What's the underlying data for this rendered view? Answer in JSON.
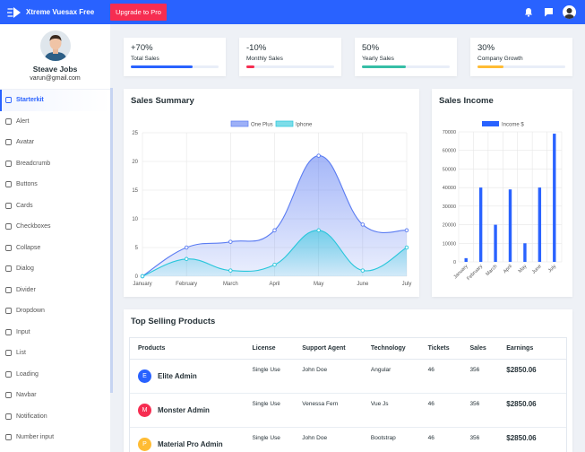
{
  "topbar": {
    "brand": "Xtreme Vuesax Free",
    "upgrade_label": "Upgrade to Pro",
    "bg": "#2962ff",
    "icons": [
      "bell-icon",
      "chat-icon",
      "avatar"
    ]
  },
  "profile": {
    "name": "Steave Jobs",
    "email": "varun@gmail.com"
  },
  "sidebar": {
    "items": [
      {
        "label": "Starterkit",
        "icon": "heart-icon"
      },
      {
        "label": "Alert",
        "icon": "info-icon"
      },
      {
        "label": "Avatar",
        "icon": "home-icon"
      },
      {
        "label": "Breadcrumb",
        "icon": "breadcrumb-icon"
      },
      {
        "label": "Buttons",
        "icon": "grid-icon"
      },
      {
        "label": "Cards",
        "icon": "card-icon"
      },
      {
        "label": "Checkboxes",
        "icon": "checkbox-icon"
      },
      {
        "label": "Collapse",
        "icon": "collapse-icon"
      },
      {
        "label": "Dialog",
        "icon": "dialog-icon"
      },
      {
        "label": "Divider",
        "icon": "divider-icon"
      },
      {
        "label": "Dropdown",
        "icon": "dropdown-icon"
      },
      {
        "label": "Input",
        "icon": "input-icon"
      },
      {
        "label": "List",
        "icon": "list-icon"
      },
      {
        "label": "Loading",
        "icon": "loading-icon"
      },
      {
        "label": "Navbar",
        "icon": "navbar-icon"
      },
      {
        "label": "Notification",
        "icon": "notification-icon"
      },
      {
        "label": "Number input",
        "icon": "number-icon"
      }
    ],
    "active_index": 0
  },
  "stats": [
    {
      "value": "+70%",
      "label": "Total Sales",
      "progress": 0.7,
      "color": "#2962ff"
    },
    {
      "value": "-10%",
      "label": "Monthly Sales",
      "progress": 0.09,
      "color": "#f62d51"
    },
    {
      "value": "50%",
      "label": "Yearly Sales",
      "progress": 0.5,
      "color": "#36bea6"
    },
    {
      "value": "30%",
      "label": "Company Growth",
      "progress": 0.3,
      "color": "#ffbc34"
    }
  ],
  "sales_summary": {
    "title": "Sales Summary",
    "chart_data": {
      "type": "area",
      "x": [
        "January",
        "February",
        "March",
        "April",
        "May",
        "June",
        "July"
      ],
      "ylim": [
        0,
        25
      ],
      "yticks": [
        0,
        5,
        10,
        15,
        20,
        25
      ],
      "grid": true,
      "legend": "top",
      "series": [
        {
          "name": "One Plus",
          "values": [
            0,
            5,
            6,
            8,
            21,
            9,
            8
          ],
          "color": "#5b7cf2"
        },
        {
          "name": "Iphone",
          "values": [
            0,
            3,
            1,
            2,
            8,
            1,
            5
          ],
          "color": "#27c6db"
        }
      ]
    }
  },
  "sales_income": {
    "title": "Sales Income",
    "chart_data": {
      "type": "bar",
      "categories": [
        "January",
        "February",
        "March",
        "April",
        "May",
        "June",
        "July"
      ],
      "ylim": [
        0,
        70000
      ],
      "yticks": [
        0,
        10000,
        20000,
        30000,
        40000,
        50000,
        60000,
        70000
      ],
      "legend": "top",
      "series": [
        {
          "name": "Income $",
          "values": [
            2000,
            40000,
            20000,
            39000,
            10000,
            40000,
            69000
          ],
          "color": "#2962ff"
        }
      ]
    }
  },
  "products": {
    "title": "Top Selling Products",
    "headers": [
      "Products",
      "License",
      "Support Agent",
      "Technology",
      "Tickets",
      "Sales",
      "Earnings"
    ],
    "rows": [
      {
        "initial": "E",
        "color": "#2962ff",
        "name": "Elite Admin",
        "license": "Single Use",
        "agent": "John Doe",
        "tech": "Angular",
        "tickets": "46",
        "sales": "356",
        "earnings": "$2850.06"
      },
      {
        "initial": "M",
        "color": "#f62d51",
        "name": "Monster Admin",
        "license": "Single Use",
        "agent": "Venessa Fern",
        "tech": "Vue Js",
        "tickets": "46",
        "sales": "356",
        "earnings": "$2850.06"
      },
      {
        "initial": "P",
        "color": "#ffbc34",
        "name": "Material Pro Admin",
        "license": "Single Use",
        "agent": "John Doe",
        "tech": "Bootstrap",
        "tickets": "46",
        "sales": "356",
        "earnings": "$2850.06"
      }
    ]
  }
}
